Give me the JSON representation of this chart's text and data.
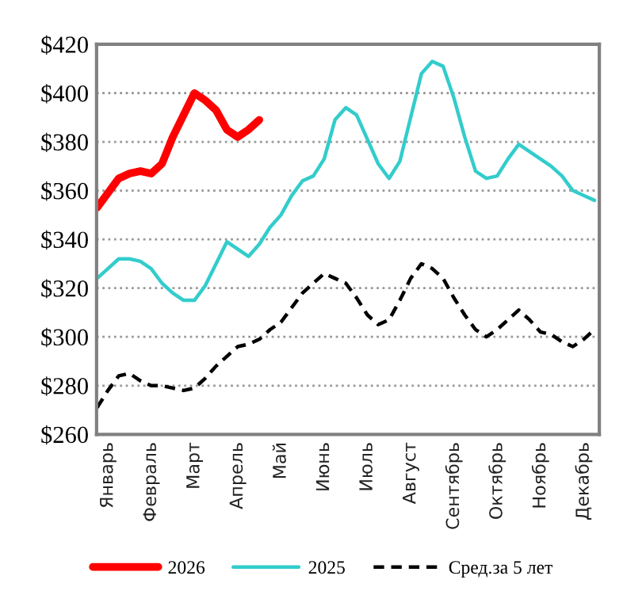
{
  "chart_data": {
    "type": "line",
    "categories": [
      null,
      "Январь",
      null,
      null,
      null,
      "Февраль",
      null,
      null,
      null,
      "Март",
      null,
      null,
      null,
      "Апрель",
      null,
      null,
      null,
      "Май",
      null,
      null,
      null,
      "Июнь",
      null,
      null,
      null,
      "Июль",
      null,
      null,
      null,
      "Август",
      null,
      null,
      null,
      "Сентябрь",
      null,
      null,
      null,
      "Октябрь",
      null,
      null,
      null,
      "Ноябрь",
      null,
      null,
      null,
      "Декабрь",
      null
    ],
    "ylim": [
      260,
      420
    ],
    "yticks": [
      {
        "value": 260,
        "label": "$260"
      },
      {
        "value": 280,
        "label": "$280"
      },
      {
        "value": 300,
        "label": "$300"
      },
      {
        "value": 320,
        "label": "$320"
      },
      {
        "value": 340,
        "label": "$340"
      },
      {
        "value": 360,
        "label": "$360"
      },
      {
        "value": 380,
        "label": "$380"
      },
      {
        "value": 400,
        "label": "$400"
      },
      {
        "value": 420,
        "label": "$420"
      }
    ],
    "grid": "y",
    "legend": "bottom",
    "series": [
      {
        "name": "2026",
        "color": "#ff0000",
        "line_style": "solid",
        "values": [
          353,
          359,
          365,
          367,
          368,
          367,
          371,
          382,
          391,
          400,
          397,
          393,
          385,
          382,
          385,
          389,
          null,
          null,
          null,
          null,
          null,
          null,
          null,
          null,
          null,
          null,
          null,
          null,
          null,
          null,
          null,
          null,
          null,
          null,
          null,
          null,
          null,
          null,
          null,
          null,
          null,
          null,
          null,
          null,
          null,
          null,
          null
        ]
      },
      {
        "name": "2025",
        "color": "#33cccc",
        "line_style": "solid",
        "values": [
          324,
          328,
          332,
          332,
          331,
          328,
          322,
          318,
          315,
          315,
          321,
          330,
          339,
          336,
          333,
          338,
          345,
          350,
          358,
          364,
          366,
          373,
          389,
          394,
          391,
          381,
          371,
          365,
          372,
          390,
          408,
          413,
          411,
          398,
          382,
          368,
          365,
          366,
          373,
          379,
          376,
          373,
          370,
          366,
          360,
          358,
          356
        ]
      },
      {
        "name": "Сред.за 5 лет",
        "color": "#000000",
        "line_style": "dashed",
        "values": [
          271,
          278,
          284,
          285,
          282,
          280,
          280,
          279,
          278,
          279,
          283,
          288,
          292,
          296,
          297,
          299,
          303,
          306,
          312,
          318,
          322,
          326,
          324,
          322,
          316,
          309,
          305,
          307,
          315,
          324,
          330,
          328,
          324,
          316,
          309,
          303,
          300,
          303,
          307,
          311,
          307,
          302,
          301,
          298,
          296,
          299,
          303
        ]
      }
    ]
  }
}
